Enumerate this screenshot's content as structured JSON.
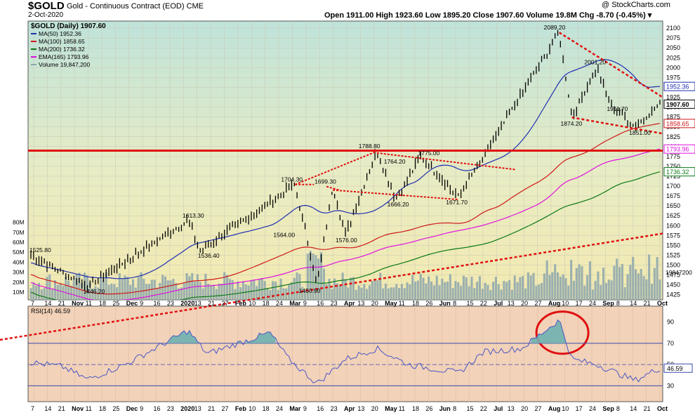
{
  "header": {
    "symbol": "$GOLD",
    "name": "Gold - Continuous Contract (EOD)  CME",
    "date": "2-Oct-2020",
    "ohlc": "Open 1911.00  High 1923.60  Low 1895.20  Close 1907.60  Volume 19.8M  Chg -8.70 (-0.45%) ▾",
    "watermark": "@ StockCharts.com"
  },
  "colors": {
    "price_bg": "#f0e8b0",
    "price_bg_top": "#bfe3da",
    "rsi_bg": "#f2d2b8",
    "price_bar": "#000000",
    "ma50": "#1f2fb0",
    "ma100": "#d01818",
    "ma200": "#0a7a16",
    "ema165": "#e010e0",
    "volume": "#8ca6ad",
    "rsi_line": "#4a56c8",
    "rsi_fill": "#6fb0b0",
    "annotation": "#e01010"
  },
  "chart_data": [
    {
      "type": "line",
      "panel": "price",
      "title": "$GOLD (Daily) 1907.60",
      "legend": [
        {
          "label": "MA(50) 1952.36",
          "color": "#1f2fb0"
        },
        {
          "label": "MA(100) 1858.65",
          "color": "#d01818"
        },
        {
          "label": "MA(200) 1736.32",
          "color": "#0a7a16"
        },
        {
          "label": "EMA(165) 1793.96",
          "color": "#e010e0"
        },
        {
          "label": "Volume 19,847,200",
          "color": "#8ca6ad"
        }
      ],
      "legend_position": "top-left",
      "grid": true,
      "ylim": [
        1412,
        2118
      ],
      "y_ticks": [
        1425,
        1450,
        1475,
        1500,
        1525,
        1550,
        1575,
        1600,
        1625,
        1650,
        1675,
        1700,
        1725,
        1750,
        1775,
        1800,
        1825,
        1850,
        1875,
        1900,
        1925,
        1950,
        1975,
        2000,
        2025,
        2050,
        2075,
        2100
      ],
      "volume_ticks": [
        "10M",
        "20M",
        "30M",
        "40M",
        "50M",
        "60M",
        "70M",
        "80M"
      ],
      "x_ticks": [
        "7",
        "14",
        "21",
        "Nov",
        "11",
        "18",
        "25",
        "Dec",
        "9",
        "16",
        "23",
        "2020",
        "13",
        "21",
        "27",
        "Feb",
        "10",
        "18",
        "24",
        "Mar",
        "9",
        "16",
        "23",
        "Apr",
        "13",
        "20",
        "May",
        "11",
        "18",
        "26",
        "Jun",
        "8",
        "15",
        "22",
        "Jul",
        "13",
        "20",
        "27",
        "Aug",
        "10",
        "17",
        "24",
        "Sep",
        "8",
        "14",
        "21",
        "Oct"
      ],
      "price_key_points": [
        {
          "t": 0,
          "v": 1525.8
        },
        {
          "t": 0.09,
          "v": 1446.2
        },
        {
          "t": 0.25,
          "v": 1613.3
        },
        {
          "t": 0.27,
          "v": 1536.4
        },
        {
          "t": 0.42,
          "v": 1704.3
        },
        {
          "t": 0.455,
          "v": 1450.9
        },
        {
          "t": 0.48,
          "v": 1699.3
        },
        {
          "t": 0.5,
          "v": 1576.0
        },
        {
          "t": 0.55,
          "v": 1788.8
        },
        {
          "t": 0.58,
          "v": 1666.2
        },
        {
          "t": 0.62,
          "v": 1775.0
        },
        {
          "t": 0.68,
          "v": 1671.7
        },
        {
          "t": 0.84,
          "v": 2089.2
        },
        {
          "t": 0.86,
          "v": 1874.2
        },
        {
          "t": 0.9,
          "v": 2001.2
        },
        {
          "t": 0.92,
          "v": 1911.7
        },
        {
          "t": 0.96,
          "v": 1851.0
        },
        {
          "t": 1.0,
          "v": 1907.6
        }
      ],
      "annotations": [
        "1525.80",
        "1446.20",
        "1613.30",
        "1536.40",
        "1564.00",
        "1704.30",
        "1450.90",
        "1699.30",
        "1576.00",
        "1788.80",
        "1764.20",
        "1666.20",
        "1775.00",
        "1671.70",
        "2089.20",
        "1874.20",
        "2001.20",
        "1911.70",
        "1851.00"
      ],
      "right_labels": [
        {
          "value": "1952.36",
          "color": "#1f2fb0"
        },
        {
          "value": "1907.60",
          "color": "#000000"
        },
        {
          "value": "1858.65",
          "color": "#d01818"
        },
        {
          "value": "1793.96",
          "color": "#e010e0"
        },
        {
          "value": "1736.32",
          "color": "#0a7a16"
        }
      ],
      "volume_last_label": "19847200",
      "horizontal_level": 1790
    },
    {
      "type": "line",
      "panel": "indicator",
      "title": "RSI(14) 46.59",
      "ylim": [
        15,
        105
      ],
      "y_ticks": [
        30,
        50,
        70,
        90
      ],
      "levels": [
        30,
        70
      ],
      "last_value": "46.59",
      "rsi_key_points": [
        {
          "t": 0.0,
          "v": 52
        },
        {
          "t": 0.05,
          "v": 48
        },
        {
          "t": 0.09,
          "v": 36
        },
        {
          "t": 0.15,
          "v": 50
        },
        {
          "t": 0.25,
          "v": 82
        },
        {
          "t": 0.28,
          "v": 60
        },
        {
          "t": 0.38,
          "v": 80
        },
        {
          "t": 0.41,
          "v": 55
        },
        {
          "t": 0.455,
          "v": 32
        },
        {
          "t": 0.5,
          "v": 55
        },
        {
          "t": 0.55,
          "v": 65
        },
        {
          "t": 0.6,
          "v": 50
        },
        {
          "t": 0.68,
          "v": 42
        },
        {
          "t": 0.72,
          "v": 62
        },
        {
          "t": 0.78,
          "v": 65
        },
        {
          "t": 0.84,
          "v": 92
        },
        {
          "t": 0.86,
          "v": 55
        },
        {
          "t": 0.9,
          "v": 50
        },
        {
          "t": 0.96,
          "v": 35
        },
        {
          "t": 1.0,
          "v": 46.59
        }
      ]
    }
  ]
}
